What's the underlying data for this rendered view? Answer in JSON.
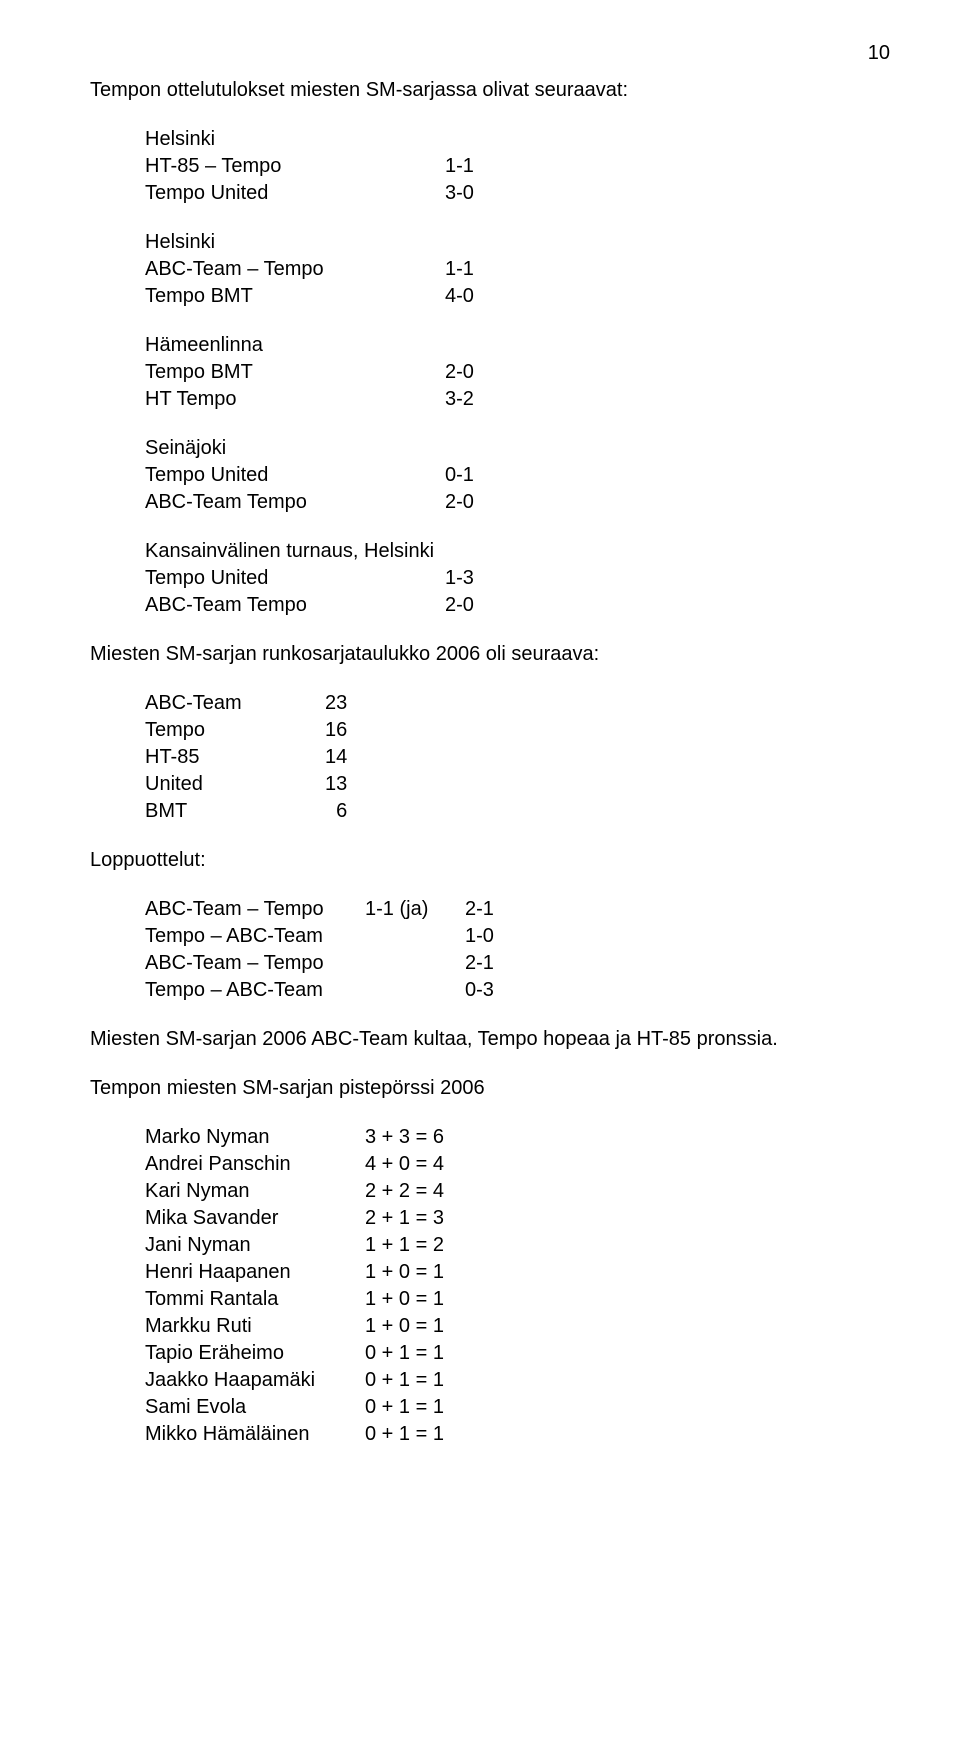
{
  "page_number": "10",
  "heading": "Tempon ottelutulokset miesten SM-sarjassa olivat seuraavat:",
  "groups": [
    {
      "title": "Helsinki",
      "rows": [
        {
          "team": "HT-85 – Tempo",
          "score": "1-1"
        },
        {
          "team": "Tempo United",
          "score": "3-0"
        }
      ]
    },
    {
      "title": "Helsinki",
      "rows": [
        {
          "team": "ABC-Team – Tempo",
          "score": "1-1"
        },
        {
          "team": "Tempo BMT",
          "score": "4-0"
        }
      ]
    },
    {
      "title": "Hämeenlinna",
      "rows": [
        {
          "team": "Tempo BMT",
          "score": "2-0"
        },
        {
          "team": "HT Tempo",
          "score": "3-2"
        }
      ]
    },
    {
      "title": "Seinäjoki",
      "rows": [
        {
          "team": "Tempo United",
          "score": "0-1"
        },
        {
          "team": "ABC-Team Tempo",
          "score": "2-0"
        }
      ]
    },
    {
      "title": "Kansainvälinen turnaus, Helsinki",
      "rows": [
        {
          "team": "Tempo United",
          "score": "1-3"
        },
        {
          "team": "ABC-Team Tempo",
          "score": "2-0"
        }
      ]
    }
  ],
  "standings_title": "Miesten SM-sarjan runkosarjataulukko 2006 oli seuraava:",
  "standings": [
    {
      "team": "ABC-Team",
      "pts": "23"
    },
    {
      "team": "Tempo",
      "pts": "16"
    },
    {
      "team": "HT-85",
      "pts": "14"
    },
    {
      "team": "United",
      "pts": "13"
    },
    {
      "team": "BMT",
      "pts": "  6"
    }
  ],
  "playoffs_title": "Loppuottelut:",
  "playoffs": [
    {
      "match": "ABC-Team – Tempo",
      "mid": "1-1 (ja)",
      "score": "2-1"
    },
    {
      "match": "Tempo – ABC-Team",
      "mid": "",
      "score": "1-0"
    },
    {
      "match": "ABC-Team – Tempo",
      "mid": "",
      "score": "2-1"
    },
    {
      "match": "Tempo – ABC-Team",
      "mid": "",
      "score": "0-3"
    }
  ],
  "result_line": "Miesten SM-sarjan 2006 ABC-Team kultaa, Tempo hopeaa ja HT-85 pronssia.",
  "scorers_title": "Tempon miesten SM-sarjan pistepörssi 2006",
  "scorers": [
    {
      "name": "Marko Nyman",
      "calc": "3 + 3 = 6"
    },
    {
      "name": "Andrei Panschin",
      "calc": "4 + 0 = 4"
    },
    {
      "name": "Kari Nyman",
      "calc": "2 + 2 = 4"
    },
    {
      "name": "Mika Savander",
      "calc": "2 + 1 = 3"
    },
    {
      "name": "Jani Nyman",
      "calc": "1 + 1 = 2"
    },
    {
      "name": "Henri Haapanen",
      "calc": "1 + 0 = 1"
    },
    {
      "name": "Tommi Rantala",
      "calc": "1 + 0 = 1"
    },
    {
      "name": "Markku Ruti",
      "calc": "1 + 0 = 1"
    },
    {
      "name": "Tapio Eräheimo",
      "calc": "0 + 1 = 1"
    },
    {
      "name": "Jaakko Haapamäki",
      "calc": "0 + 1 = 1"
    },
    {
      "name": "Sami Evola",
      "calc": "0 + 1 = 1"
    },
    {
      "name": "Mikko Hämäläinen",
      "calc": "0 + 1 = 1"
    }
  ]
}
